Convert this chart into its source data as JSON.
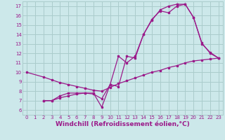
{
  "background_color": "#cce8ea",
  "line_color": "#9b1a8a",
  "grid_color": "#aacccc",
  "xlabel": "Windchill (Refroidissement éolien,°C)",
  "xlabel_fontsize": 6.5,
  "xlabel_color": "#9b1a8a",
  "ylabel_ticks": [
    6,
    7,
    8,
    9,
    10,
    11,
    12,
    13,
    14,
    15,
    16,
    17
  ],
  "xlabel_ticks": [
    0,
    1,
    2,
    3,
    4,
    5,
    6,
    7,
    8,
    9,
    10,
    11,
    12,
    13,
    14,
    15,
    16,
    17,
    18,
    19,
    20,
    21,
    22,
    23
  ],
  "xlim": [
    -0.5,
    23.5
  ],
  "ylim": [
    5.5,
    17.5
  ],
  "series1_x": [
    0,
    2,
    3,
    4,
    5,
    6,
    7,
    8,
    9,
    10,
    11,
    12,
    13,
    14,
    15,
    16,
    17,
    18,
    19,
    20,
    21,
    22,
    23
  ],
  "series1_y": [
    10,
    9.5,
    9.2,
    8.9,
    8.7,
    8.5,
    8.3,
    8.1,
    8.0,
    8.4,
    8.8,
    9.1,
    9.4,
    9.7,
    10.0,
    10.2,
    10.5,
    10.7,
    11.0,
    11.2,
    11.3,
    11.4,
    11.5
  ],
  "series2_x": [
    2,
    3,
    4,
    5,
    6,
    7,
    8,
    9,
    10,
    11,
    12,
    13,
    14,
    15,
    16,
    17,
    18,
    19,
    20,
    21,
    22,
    23
  ],
  "series2_y": [
    7.0,
    7.0,
    7.3,
    7.5,
    7.7,
    7.8,
    7.8,
    6.3,
    8.7,
    11.7,
    11.0,
    11.7,
    14.0,
    15.6,
    16.5,
    16.3,
    17.0,
    17.2,
    15.8,
    13.0,
    12.1,
    11.5
  ],
  "series3_x": [
    2,
    3,
    4,
    5,
    6,
    7,
    8,
    9,
    10,
    11,
    12,
    13,
    14,
    15,
    16,
    17,
    18,
    19,
    20,
    21,
    22,
    23
  ],
  "series3_y": [
    7.0,
    7.0,
    7.5,
    7.8,
    7.8,
    7.8,
    7.7,
    7.2,
    8.7,
    8.5,
    11.7,
    11.5,
    14.0,
    15.5,
    16.6,
    17.0,
    17.2,
    17.2,
    15.8,
    13.1,
    12.0,
    11.5
  ]
}
